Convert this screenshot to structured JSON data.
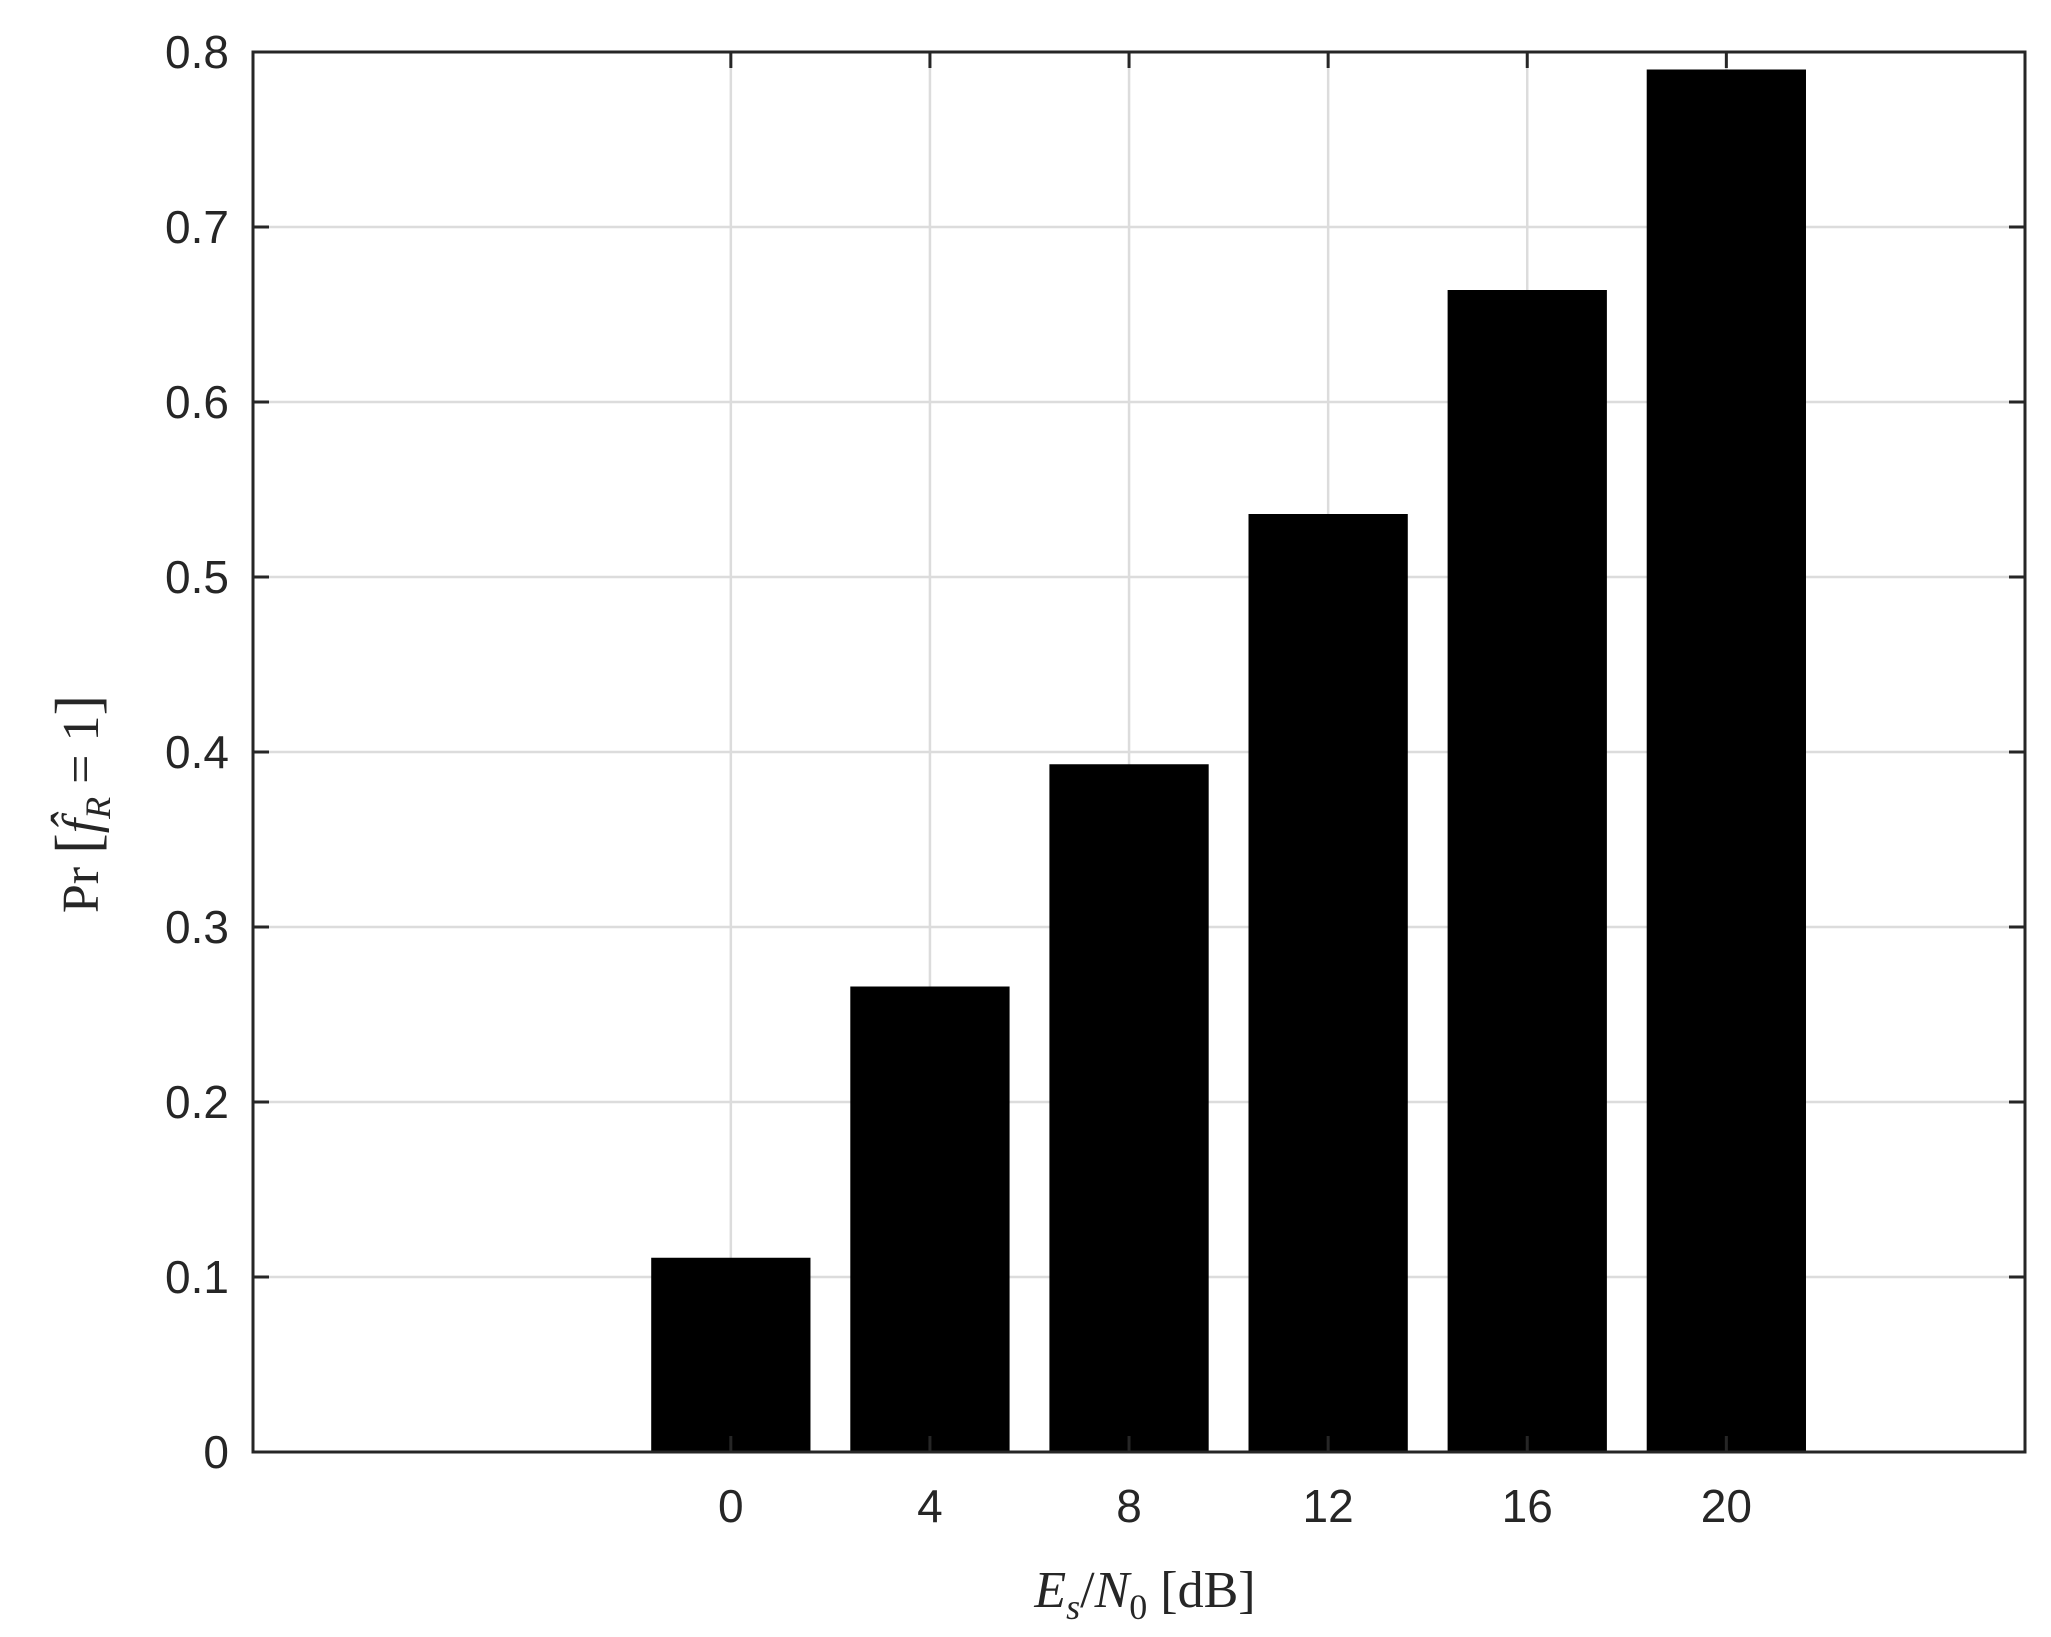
{
  "chart_data": {
    "type": "bar",
    "categories": [
      "0",
      "4",
      "8",
      "12",
      "16",
      "20"
    ],
    "x": [
      0,
      4,
      8,
      12,
      16,
      20
    ],
    "values": [
      0.111,
      0.266,
      0.393,
      0.536,
      0.664,
      0.79
    ],
    "xlim": [
      -9.6,
      26
    ],
    "ylim": [
      0,
      0.8
    ],
    "yticks": [
      0,
      0.1,
      0.2,
      0.3,
      0.4,
      0.5,
      0.6,
      0.7,
      0.8
    ],
    "ytick_labels": [
      "0",
      "0.1",
      "0.2",
      "0.3",
      "0.4",
      "0.5",
      "0.6",
      "0.7",
      "0.8"
    ],
    "xticks": [
      0,
      4,
      8,
      12,
      16,
      20
    ],
    "xtick_labels": [
      "0",
      "4",
      "8",
      "12",
      "16",
      "20"
    ],
    "xlabel": "Es/N0 [dB]",
    "ylabel": "Pr [f̂R = 1]",
    "grid": true,
    "bar_color": "#000000",
    "grid_color": "#dcdcdc",
    "axis_color": "#262626"
  }
}
